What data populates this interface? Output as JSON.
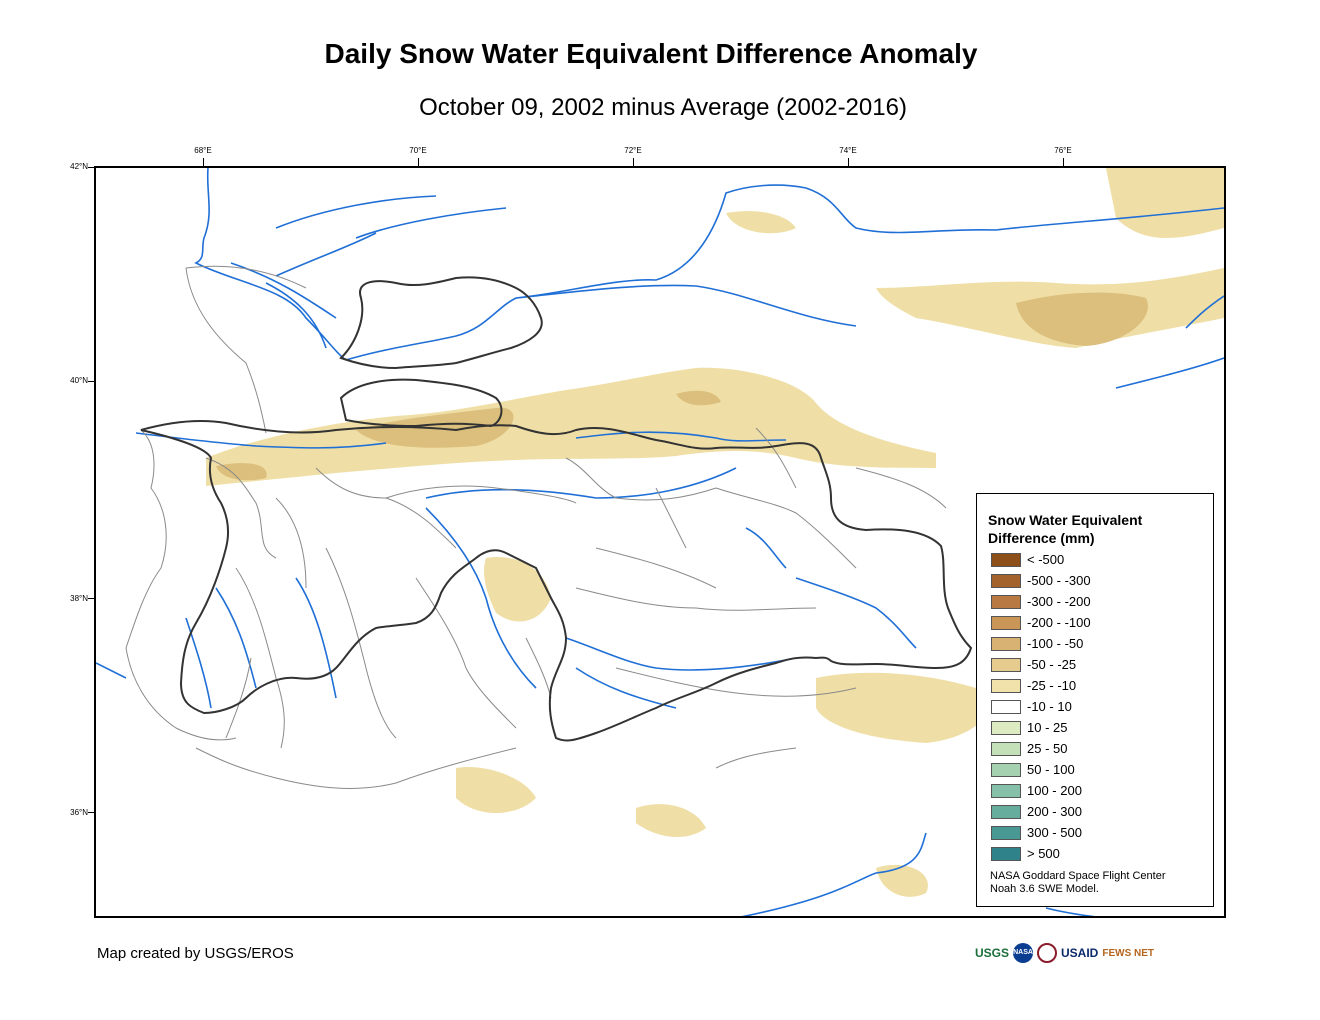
{
  "title": "Daily Snow Water Equivalent Difference Anomaly",
  "subtitle": "October 09, 2002 minus Average (2002-2016)",
  "longitude_labels": [
    "68°E",
    "70°E",
    "72°E",
    "74°E",
    "76°E"
  ],
  "latitude_labels": [
    "42°N",
    "40°N",
    "38°N",
    "36°N"
  ],
  "legend": {
    "title": "Snow Water Equivalent Difference (mm)",
    "items": [
      {
        "label": "< -500",
        "color": "#8c4f1a"
      },
      {
        "label": "-500 - -300",
        "color": "#a3622b"
      },
      {
        "label": "-300 - -200",
        "color": "#b87a42"
      },
      {
        "label": "-200 - -100",
        "color": "#c99658"
      },
      {
        "label": "-100 - -50",
        "color": "#d8b272"
      },
      {
        "label": "-50 - -25",
        "color": "#e5cb8e"
      },
      {
        "label": "-25 - -10",
        "color": "#f1e1ab"
      },
      {
        "label": "-10 - 10",
        "color": "#ffffff"
      },
      {
        "label": "10 - 25",
        "color": "#dcebc1"
      },
      {
        "label": "25 - 50",
        "color": "#c4e0b9"
      },
      {
        "label": "50 - 100",
        "color": "#a6d1b0"
      },
      {
        "label": "100 - 200",
        "color": "#86c0a8"
      },
      {
        "label": "200 - 300",
        "color": "#66ad9e"
      },
      {
        "label": "300 - 500",
        "color": "#4a9894"
      },
      {
        "label": "> 500",
        "color": "#2f8289"
      }
    ],
    "note_line1": "NASA Goddard Space Flight Center",
    "note_line2": "Noah 3.6 SWE Model."
  },
  "credit": "Map created by USGS/EROS",
  "logos": [
    "USGS",
    "NASA",
    "USAID",
    "FEWS NET"
  ],
  "colors": {
    "river": "#1f6fd6",
    "border": "#333333",
    "basin": "#8a8a8a",
    "snow_light": "#efdfa6",
    "snow_mid": "#dcbf7c"
  }
}
